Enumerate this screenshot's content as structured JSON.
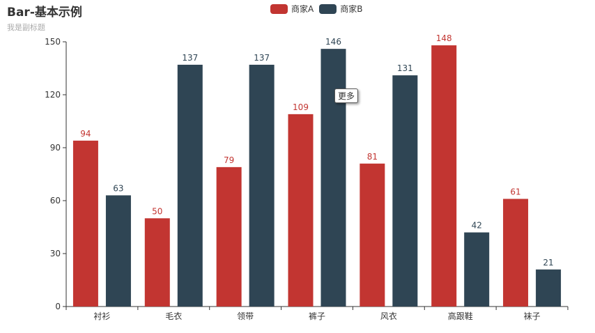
{
  "title": "Bar-基本示例",
  "subtitle": "我是副标题",
  "tooltip": "更多",
  "colors": {
    "series_a": "#c23531",
    "series_b": "#2f4554",
    "axis": "#333333",
    "title": "#333333",
    "subtitle": "#aaaaaa"
  },
  "chart_data": {
    "type": "bar",
    "title": "Bar-基本示例",
    "subtitle": "我是副标题",
    "categories": [
      "衬衫",
      "毛衣",
      "领带",
      "裤子",
      "风衣",
      "高跟鞋",
      "袜子"
    ],
    "series": [
      {
        "name": "商家A",
        "color": "#c23531",
        "values": [
          94,
          50,
          79,
          109,
          81,
          148,
          61
        ]
      },
      {
        "name": "商家B",
        "color": "#2f4554",
        "values": [
          63,
          137,
          137,
          146,
          131,
          42,
          21
        ]
      }
    ],
    "ylim": [
      0,
      150
    ],
    "yticks": [
      "0",
      "30",
      "60",
      "90",
      "120",
      "150"
    ],
    "xlabel": "",
    "ylabel": "",
    "grid": false,
    "legend_position": "top-center",
    "data_labels": true
  }
}
